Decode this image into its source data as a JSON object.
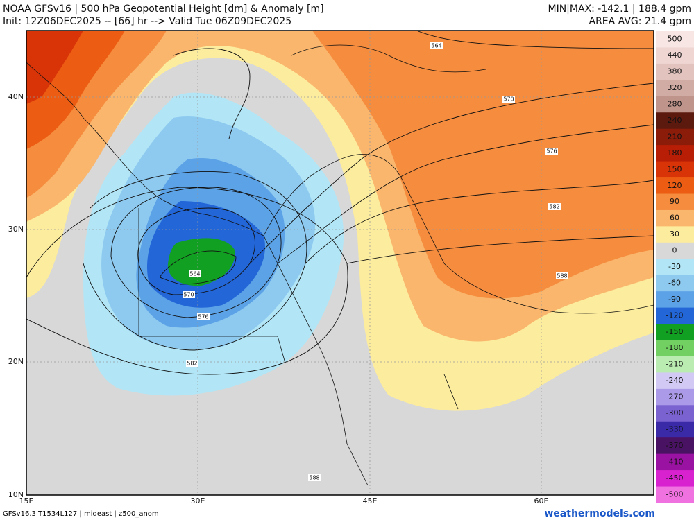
{
  "header": {
    "title": "NOAA GFSv16 | 500 hPa Geopotential Height [dm] & Anomaly [m]",
    "init": "Init: 12Z06DEC2025 -- [66] hr --> Valid Tue 06Z09DEC2025",
    "minmax": "MIN|MAX: -142.1 | 188.4 gpm",
    "area_avg": "AREA AVG: 21.4 gpm"
  },
  "map": {
    "lat_labels": [
      "40N",
      "30N",
      "20N",
      "10N"
    ],
    "lon_labels": [
      "15E",
      "30E",
      "45E",
      "60E"
    ],
    "contour_labels": [
      "564",
      "570",
      "576",
      "582",
      "588",
      "564",
      "570",
      "576",
      "582",
      "588"
    ]
  },
  "colorbar": {
    "levels": [
      500,
      440,
      380,
      320,
      280,
      240,
      210,
      180,
      150,
      120,
      90,
      60,
      30,
      0,
      -30,
      -60,
      -90,
      -120,
      -150,
      -180,
      -210,
      -240,
      -270,
      -300,
      -330,
      -370,
      -410,
      -450,
      -500
    ],
    "colors": [
      "#f8e6e4",
      "#efd6d2",
      "#e2c3be",
      "#d1aca5",
      "#bf948b",
      "#5c1a0e",
      "#8c1c0a",
      "#b81e06",
      "#d83408",
      "#ec5c12",
      "#f58c3e",
      "#f9b66c",
      "#fcec9e",
      "#d8d8d8",
      "#b2e6f6",
      "#8ecaf0",
      "#5ca2e6",
      "#2266d8",
      "#12a022",
      "#72d062",
      "#baecb2",
      "#d2caf4",
      "#aa9ae8",
      "#7a62d0",
      "#3a2aa8",
      "#4a1262",
      "#9a12a2",
      "#d822d0",
      "#f072e0"
    ]
  },
  "footer": {
    "left": "GFSv16.3 T1534L127 | mideast | z500_anom",
    "right": "weathermodels.com"
  }
}
